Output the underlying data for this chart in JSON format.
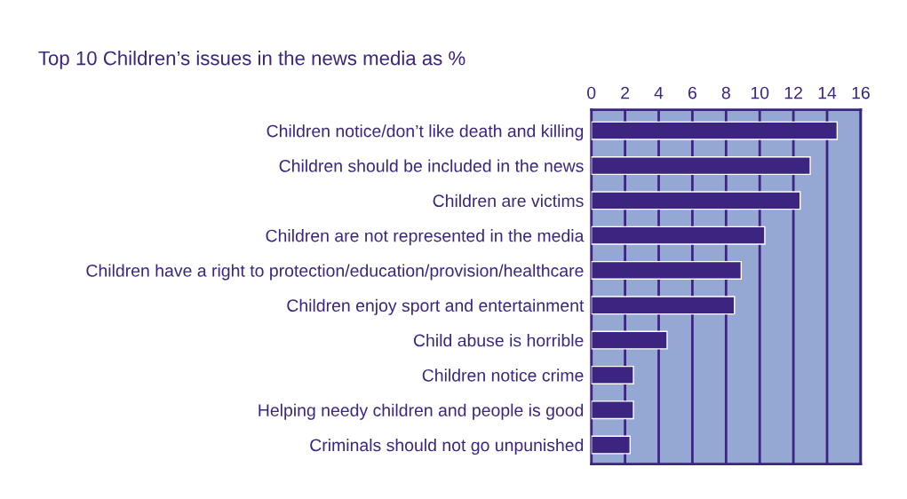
{
  "chart_data": {
    "type": "bar",
    "orientation": "horizontal",
    "title": "Top 10 Children’s issues in the news media as %",
    "categories": [
      "Children notice/don’t like death and killing",
      "Children should be included in the news",
      "Children are victims",
      "Children are not represented in the media",
      "Children have a right to protection/education/provision/healthcare",
      "Children enjoy sport and entertainment",
      "Child abuse is horrible",
      "Children notice crime",
      "Helping needy children and people is good",
      "Criminals should not go unpunished"
    ],
    "values": [
      14.6,
      13.0,
      12.4,
      10.3,
      8.9,
      8.5,
      4.5,
      2.5,
      2.5,
      2.3
    ],
    "color": "#3b2580",
    "xlim": [
      0,
      16
    ],
    "xticks": [
      0,
      2,
      4,
      6,
      8,
      10,
      12,
      14,
      16
    ],
    "grid": "x"
  }
}
